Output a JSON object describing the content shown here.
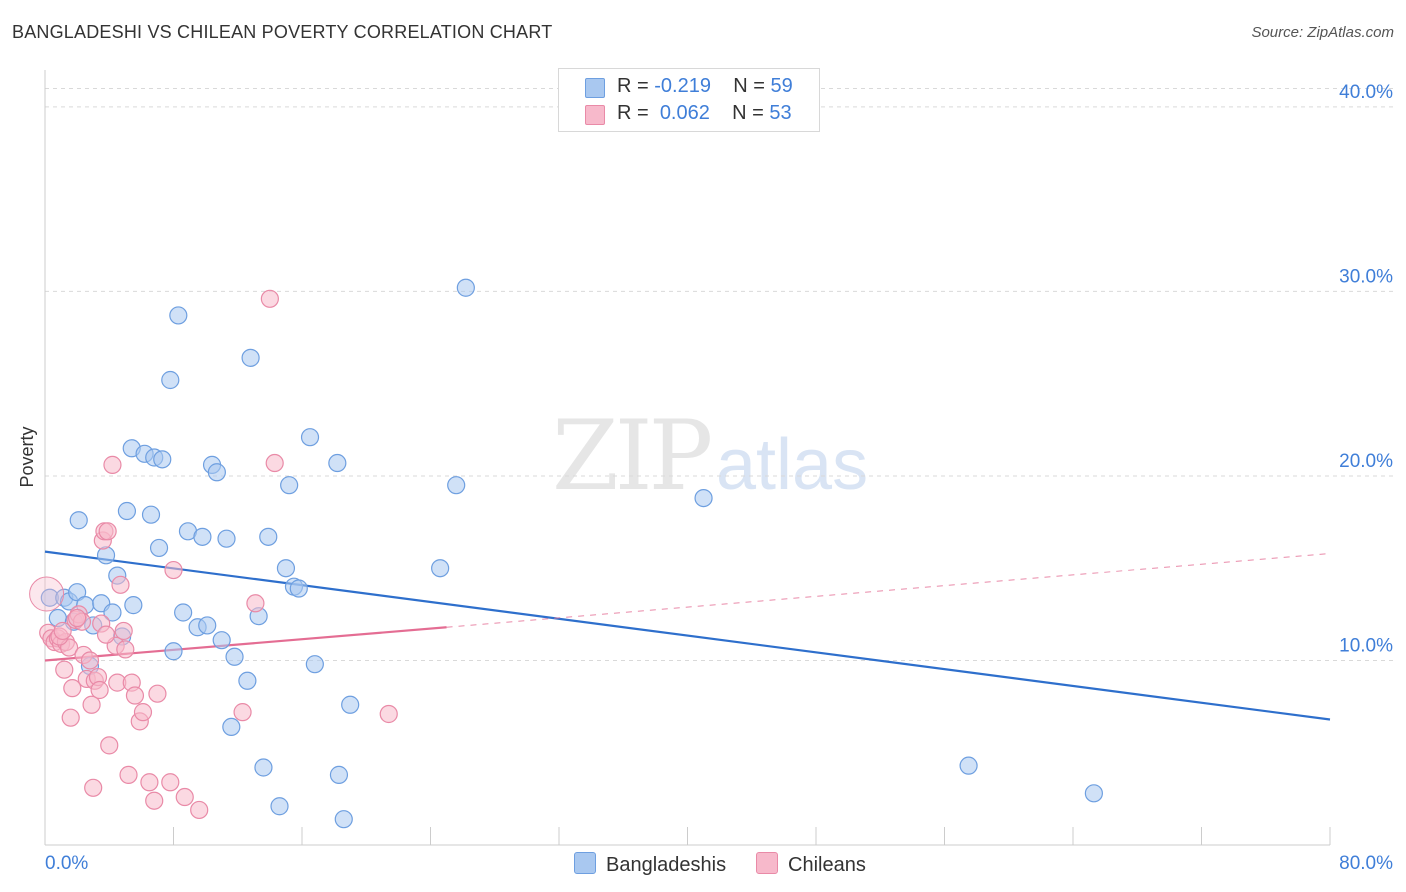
{
  "title": "BANGLADESHI VS CHILEAN POVERTY CORRELATION CHART",
  "source": "Source: ZipAtlas.com",
  "watermark": {
    "zip": "ZIP",
    "atlas": "atlas"
  },
  "colors": {
    "blue_fill": "#a9c8f0",
    "blue_stroke": "#6e9fe0",
    "blue_line": "#2e6fcc",
    "pink_fill": "#f7b9cb",
    "pink_stroke": "#e98aa7",
    "pink_line": "#e46d93",
    "axis_text": "#3f7ed8",
    "grid": "#d9d9d9"
  },
  "legend": {
    "rows": [
      {
        "r_label": "R = ",
        "r_value": "-0.219",
        "n_label": "N = ",
        "n_value": "59",
        "color": "#a9c8f0"
      },
      {
        "r_label": "R = ",
        "r_value": "0.062",
        "n_label": "N = ",
        "n_value": "53",
        "color": "#f7b9cb"
      }
    ]
  },
  "bottom_legend": [
    "Bangladeshis",
    "Chileans"
  ],
  "chart_data": {
    "type": "scatter",
    "title": "BANGLADESHI VS CHILEAN POVERTY CORRELATION CHART",
    "xlabel": "",
    "ylabel": "Poverty",
    "xlim": [
      0,
      80
    ],
    "ylim": [
      0,
      42
    ],
    "x_tick_labels": [
      "0.0%",
      "80.0%"
    ],
    "y_ticks": [
      10,
      20,
      30,
      40
    ],
    "y_tick_labels": [
      "10.0%",
      "20.0%",
      "30.0%",
      "40.0%"
    ],
    "grid": "horizontal dashed",
    "legend_position": "top-center",
    "series": [
      {
        "name": "Bangladeshis",
        "r": -0.219,
        "n": 59,
        "trend": {
          "x": [
            0,
            80
          ],
          "y": [
            15.9,
            6.8
          ],
          "style": "solid"
        },
        "points": [
          [
            0.3,
            13.4
          ],
          [
            0.8,
            12.3
          ],
          [
            1.2,
            13.4
          ],
          [
            1.5,
            13.2
          ],
          [
            1.8,
            12.1
          ],
          [
            2.0,
            13.7
          ],
          [
            2.1,
            17.6
          ],
          [
            2.5,
            13.0
          ],
          [
            2.8,
            9.7
          ],
          [
            3.0,
            11.9
          ],
          [
            3.5,
            13.1
          ],
          [
            3.8,
            15.7
          ],
          [
            4.2,
            12.6
          ],
          [
            4.5,
            14.6
          ],
          [
            4.8,
            11.3
          ],
          [
            5.1,
            18.1
          ],
          [
            5.5,
            13.0
          ],
          [
            5.4,
            21.5
          ],
          [
            6.2,
            21.2
          ],
          [
            6.6,
            17.9
          ],
          [
            6.8,
            21.0
          ],
          [
            7.1,
            16.1
          ],
          [
            7.3,
            20.9
          ],
          [
            7.8,
            25.2
          ],
          [
            8.0,
            10.5
          ],
          [
            8.3,
            28.7
          ],
          [
            8.6,
            12.6
          ],
          [
            8.9,
            17.0
          ],
          [
            9.5,
            11.8
          ],
          [
            9.8,
            16.7
          ],
          [
            10.1,
            11.9
          ],
          [
            10.4,
            20.6
          ],
          [
            10.7,
            20.2
          ],
          [
            11.0,
            11.1
          ],
          [
            11.3,
            16.6
          ],
          [
            11.8,
            10.2
          ],
          [
            11.6,
            6.4
          ],
          [
            12.6,
            8.9
          ],
          [
            12.8,
            26.4
          ],
          [
            13.3,
            12.4
          ],
          [
            13.6,
            4.2
          ],
          [
            13.9,
            16.7
          ],
          [
            14.6,
            2.1
          ],
          [
            15.0,
            15.0
          ],
          [
            15.2,
            19.5
          ],
          [
            15.5,
            14.0
          ],
          [
            15.8,
            13.9
          ],
          [
            16.5,
            22.1
          ],
          [
            16.8,
            9.8
          ],
          [
            18.2,
            20.7
          ],
          [
            18.3,
            3.8
          ],
          [
            18.6,
            1.4
          ],
          [
            19.0,
            7.6
          ],
          [
            24.6,
            15.0
          ],
          [
            25.6,
            19.5
          ],
          [
            26.2,
            30.2
          ],
          [
            41.0,
            18.8
          ],
          [
            57.5,
            4.3
          ],
          [
            65.3,
            2.8
          ]
        ]
      },
      {
        "name": "Chileans",
        "r": 0.062,
        "n": 53,
        "trend": {
          "x": [
            0,
            25
          ],
          "y": [
            10.0,
            11.8
          ],
          "style": "solid",
          "extension": {
            "x": [
              25,
              80
            ],
            "y": [
              11.8,
              15.8
            ],
            "style": "dashed"
          }
        },
        "points": [
          [
            0.2,
            11.5
          ],
          [
            0.4,
            11.2
          ],
          [
            0.6,
            11.0
          ],
          [
            0.8,
            11.2
          ],
          [
            1.0,
            10.9
          ],
          [
            1.2,
            9.5
          ],
          [
            1.3,
            11.0
          ],
          [
            1.5,
            10.7
          ],
          [
            1.6,
            6.9
          ],
          [
            1.7,
            8.5
          ],
          [
            1.9,
            12.2
          ],
          [
            2.1,
            12.5
          ],
          [
            2.3,
            12.1
          ],
          [
            2.4,
            10.3
          ],
          [
            2.6,
            9.0
          ],
          [
            2.8,
            10.0
          ],
          [
            2.9,
            7.6
          ],
          [
            3.0,
            3.1
          ],
          [
            3.1,
            8.9
          ],
          [
            3.3,
            9.1
          ],
          [
            3.4,
            8.4
          ],
          [
            3.5,
            12.0
          ],
          [
            3.6,
            16.5
          ],
          [
            3.7,
            17.0
          ],
          [
            3.9,
            17.0
          ],
          [
            4.0,
            5.4
          ],
          [
            4.2,
            20.6
          ],
          [
            4.4,
            10.8
          ],
          [
            4.5,
            8.8
          ],
          [
            4.7,
            14.1
          ],
          [
            4.9,
            11.6
          ],
          [
            5.0,
            10.6
          ],
          [
            5.2,
            3.8
          ],
          [
            5.4,
            8.8
          ],
          [
            5.6,
            8.1
          ],
          [
            5.9,
            6.7
          ],
          [
            6.1,
            7.2
          ],
          [
            6.5,
            3.4
          ],
          [
            6.8,
            2.4
          ],
          [
            7.0,
            8.2
          ],
          [
            7.8,
            3.4
          ],
          [
            8.0,
            14.9
          ],
          [
            8.7,
            2.6
          ],
          [
            9.6,
            1.9
          ],
          [
            12.3,
            7.2
          ],
          [
            13.1,
            13.1
          ],
          [
            14.0,
            29.6
          ],
          [
            14.3,
            20.7
          ],
          [
            21.4,
            7.1
          ],
          [
            0.9,
            11.3
          ],
          [
            1.1,
            11.6
          ],
          [
            2.0,
            12.3
          ],
          [
            3.8,
            11.4
          ]
        ]
      }
    ]
  }
}
